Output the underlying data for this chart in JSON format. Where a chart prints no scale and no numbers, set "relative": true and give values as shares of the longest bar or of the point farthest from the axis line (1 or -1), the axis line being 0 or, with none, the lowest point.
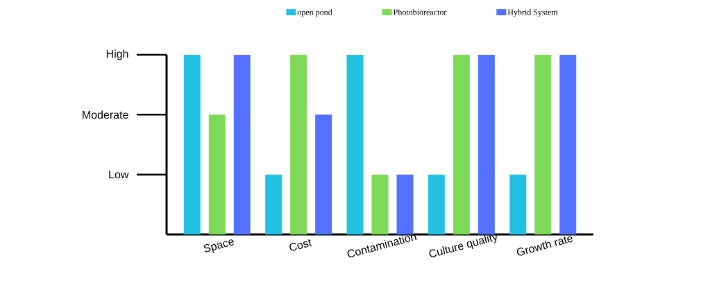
{
  "chart_data": {
    "type": "bar",
    "relative": true,
    "categories": [
      "Space",
      "Cost",
      "Contamination",
      "Culture quality",
      "Growth rate"
    ],
    "series": [
      {
        "name": "open pond",
        "color": "#22c1e4",
        "values": [
          1,
          0.333,
          1,
          0.333,
          0.333
        ]
      },
      {
        "name": "Photobioreactor",
        "color": "#7ed957",
        "values": [
          0.667,
          1,
          0.333,
          1,
          1
        ]
      },
      {
        "name": "Hybrid System",
        "color": "#5271ff",
        "values": [
          1,
          0.667,
          0.333,
          1,
          1
        ]
      }
    ],
    "annotations": [
      "Low",
      "Moderate",
      "High"
    ],
    "legend": "top"
  }
}
